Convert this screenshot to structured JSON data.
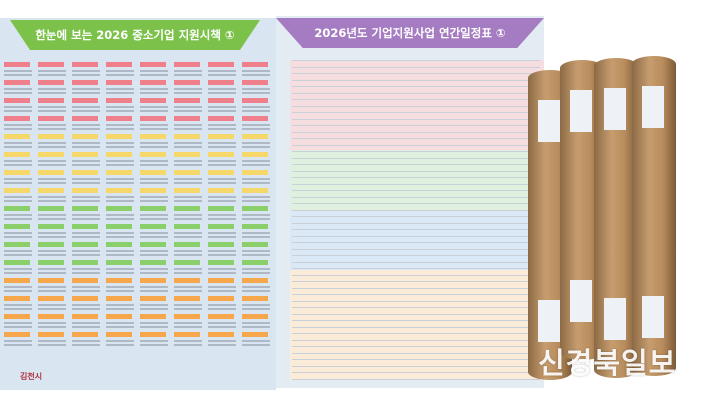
{
  "left_poster": {
    "title": "한눈에 보는 2026 중소기업 지원시책 ①",
    "logo": "김천시",
    "tag_colors": [
      "#f07f8c",
      "#f6d76a",
      "#8bcf6a",
      "#f6a74c",
      "#5fb8e0"
    ]
  },
  "right_poster": {
    "title": "2026년도 기업지원사업 연간일정표 ①",
    "band_colors": [
      "#f6dde0",
      "#dff0df",
      "#dbe9f6",
      "#faecd8"
    ]
  },
  "tubes": {
    "count": 4,
    "color": "#b88c5c"
  },
  "watermark": "신경북일보"
}
